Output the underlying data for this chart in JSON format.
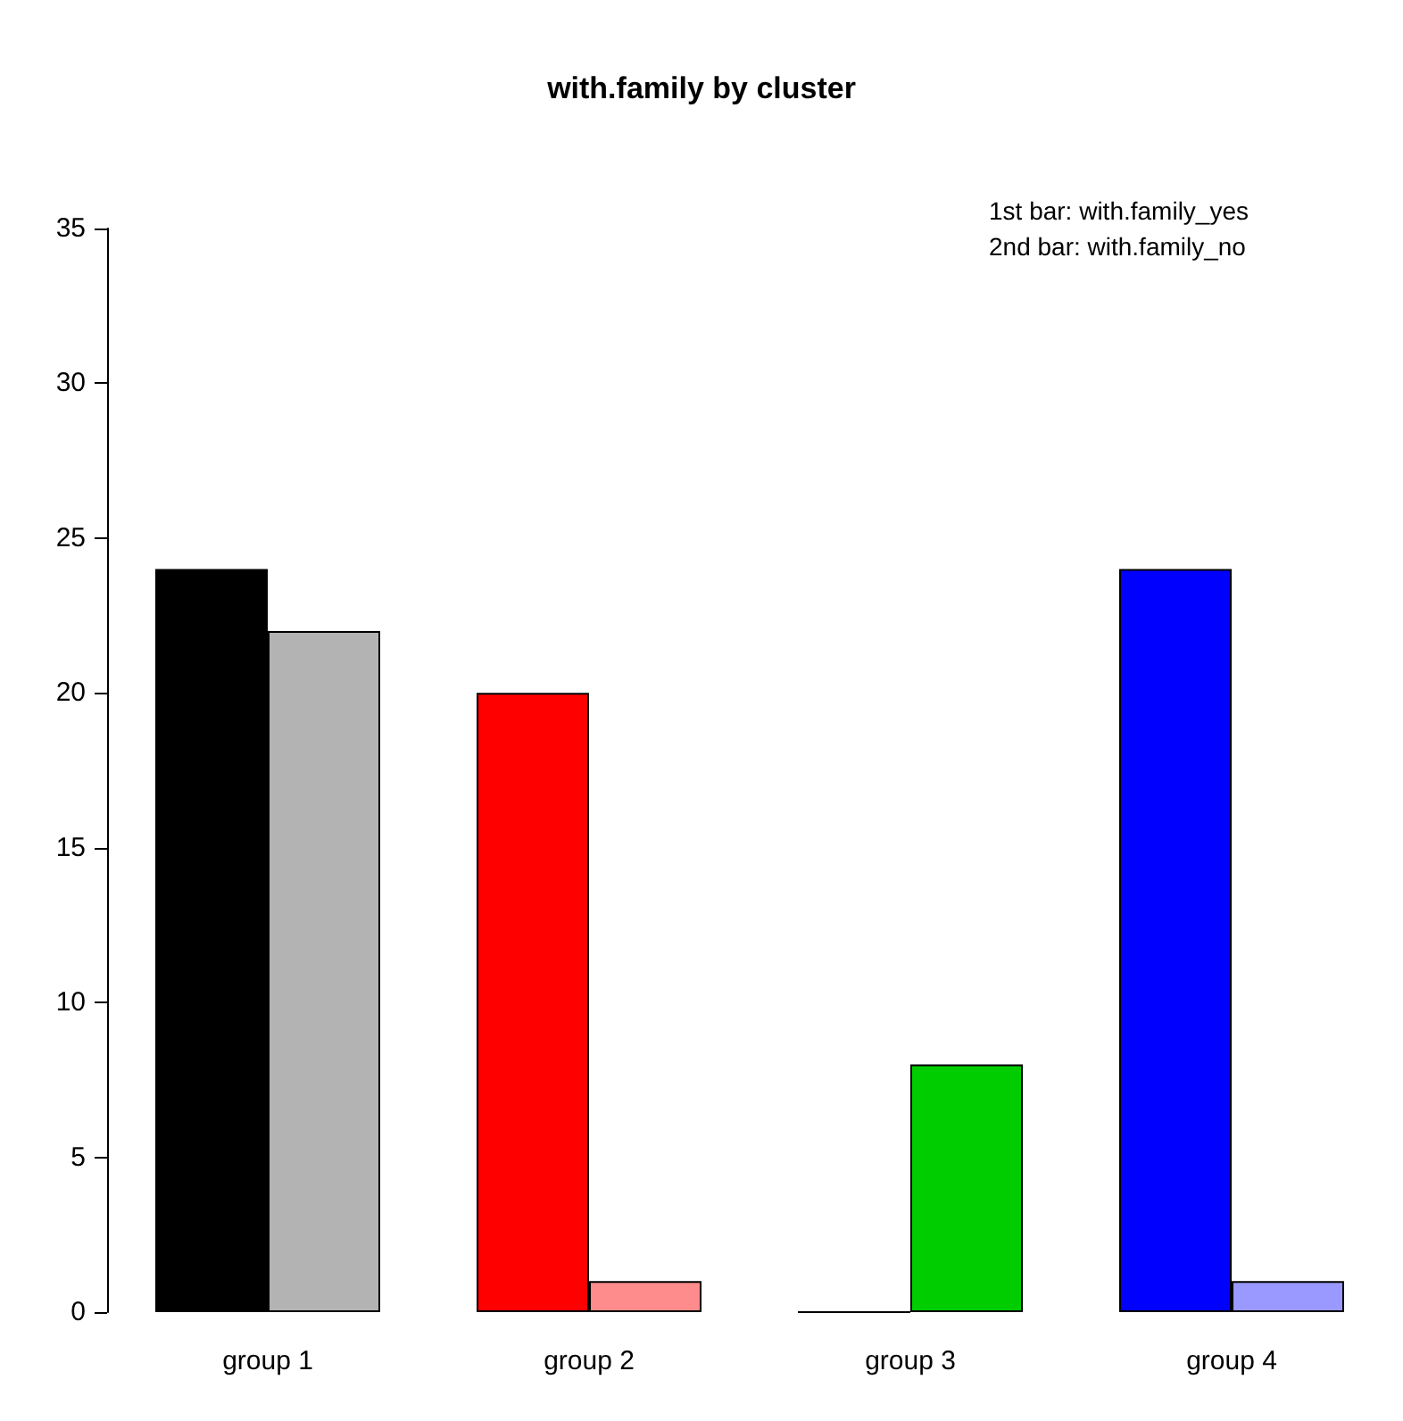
{
  "chart_data": {
    "type": "bar",
    "title": "with.family by cluster",
    "categories": [
      "group 1",
      "group 2",
      "group 3",
      "group 4"
    ],
    "series": [
      {
        "colors": [
          "#000000",
          "#ff0000",
          "#000000",
          "#0000ff"
        ],
        "values": [
          24,
          20,
          0,
          24
        ]
      },
      {
        "colors": [
          "#b3b3b3",
          "#ff8c8c",
          "#00cd00",
          "#9999ff"
        ],
        "values": [
          22,
          1,
          8,
          1
        ]
      }
    ],
    "ylim": [
      0,
      35
    ],
    "yticks": [
      0,
      5,
      10,
      15,
      20,
      25,
      30,
      35
    ],
    "grid": false,
    "annotations": [
      "1st bar: with.family_yes",
      "2nd bar: with.family_no"
    ]
  }
}
